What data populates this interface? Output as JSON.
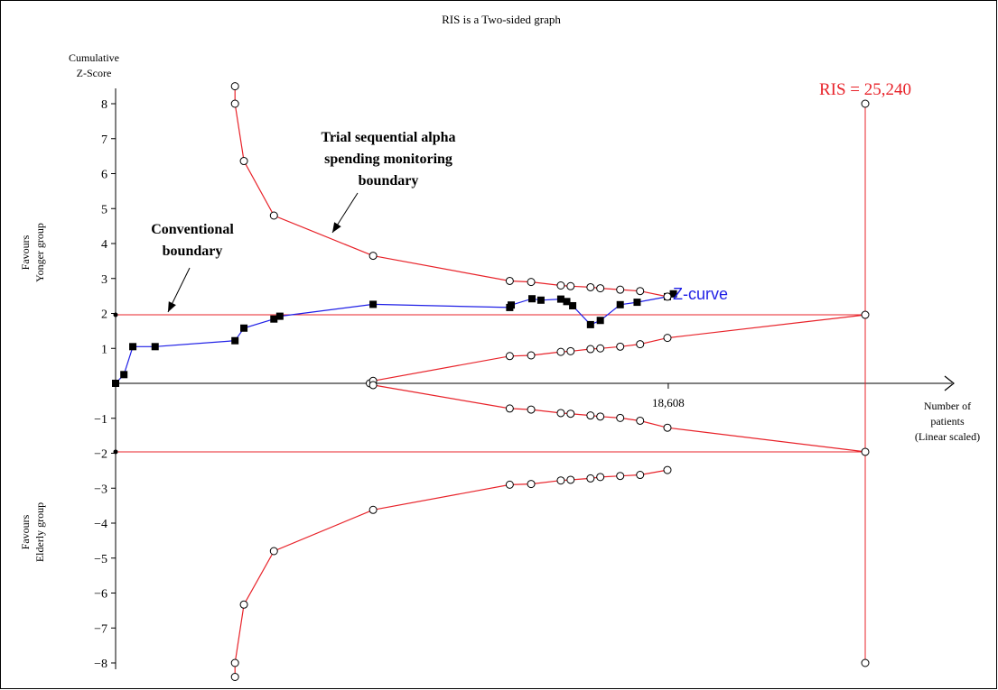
{
  "title": "RIS is a Two-sided graph",
  "colors": {
    "z_curve": "#1f1fe6",
    "boundary": "#e8232a",
    "ris_text": "#e8232a",
    "axis": "#000000",
    "frame_border": "#000000"
  },
  "chart_data": {
    "type": "line",
    "title": "RIS is a Two-sided graph",
    "ylabel_lines": [
      "Cumulative",
      "Z-Score"
    ],
    "xlabel_lines": [
      "Number of",
      "patients",
      "(Linear scaled)"
    ],
    "y_side_labels": {
      "upper": [
        "Favours",
        "Yonger group"
      ],
      "lower": [
        "Favours",
        "Elderly group"
      ]
    },
    "ylim": [
      -8.5,
      8.6
    ],
    "yticks": [
      8,
      7,
      6,
      5,
      4,
      3,
      2,
      1,
      -1,
      -2,
      -3,
      -4,
      -5,
      -6,
      -7,
      -8
    ],
    "x_tick_labels": [
      {
        "x": 18608,
        "label": "18,608"
      }
    ],
    "ris": {
      "x": 25240,
      "label": "RIS = 25,240",
      "y_top": 8,
      "y_bottom": -8
    },
    "conventional_boundary": 1.96,
    "series": [
      {
        "name": "Z-curve",
        "points": [
          [
            0,
            0
          ],
          [
            280,
            0.25
          ],
          [
            580,
            1.05
          ],
          [
            1330,
            1.05
          ],
          [
            4020,
            1.22
          ],
          [
            4320,
            1.58
          ],
          [
            5330,
            1.84
          ],
          [
            5530,
            1.92
          ],
          [
            8670,
            2.26
          ],
          [
            13270,
            2.17
          ],
          [
            13320,
            2.24
          ],
          [
            14020,
            2.42
          ],
          [
            14320,
            2.38
          ],
          [
            14990,
            2.41
          ],
          [
            15190,
            2.34
          ],
          [
            15390,
            2.22
          ],
          [
            15990,
            1.68
          ],
          [
            16320,
            1.8
          ],
          [
            16990,
            2.25
          ],
          [
            17560,
            2.32
          ],
          [
            18580,
            2.48
          ],
          [
            18780,
            2.56
          ]
        ]
      },
      {
        "name": "upper_alpha_spending",
        "points": [
          [
            4020,
            8.5
          ],
          [
            4020,
            8.0
          ],
          [
            4320,
            6.36
          ],
          [
            5330,
            4.8
          ],
          [
            8670,
            3.65
          ],
          [
            13270,
            2.93
          ],
          [
            13990,
            2.9
          ],
          [
            14990,
            2.8
          ],
          [
            15320,
            2.78
          ],
          [
            15990,
            2.75
          ],
          [
            16320,
            2.72
          ],
          [
            16990,
            2.68
          ],
          [
            17660,
            2.64
          ],
          [
            18580,
            2.48
          ]
        ]
      },
      {
        "name": "lower_alpha_spending",
        "points": [
          [
            4020,
            -8.4
          ],
          [
            4020,
            -8.0
          ],
          [
            4320,
            -6.33
          ],
          [
            5330,
            -4.8
          ],
          [
            8670,
            -3.62
          ],
          [
            13270,
            -2.9
          ],
          [
            13990,
            -2.88
          ],
          [
            14990,
            -2.78
          ],
          [
            15320,
            -2.76
          ],
          [
            15990,
            -2.72
          ],
          [
            16320,
            -2.68
          ],
          [
            16990,
            -2.65
          ],
          [
            17660,
            -2.62
          ],
          [
            18580,
            -2.48
          ]
        ]
      },
      {
        "name": "upper_futility",
        "points": [
          [
            8560,
            0.0
          ],
          [
            8670,
            0.07
          ],
          [
            13270,
            0.78
          ],
          [
            13990,
            0.8
          ],
          [
            14990,
            0.9
          ],
          [
            15320,
            0.92
          ],
          [
            15990,
            0.98
          ],
          [
            16320,
            1.0
          ],
          [
            16990,
            1.05
          ],
          [
            17660,
            1.12
          ],
          [
            18580,
            1.3
          ],
          [
            25240,
            1.96
          ]
        ]
      },
      {
        "name": "lower_futility",
        "points": [
          [
            8670,
            -0.05
          ],
          [
            13270,
            -0.72
          ],
          [
            13990,
            -0.75
          ],
          [
            14990,
            -0.85
          ],
          [
            15320,
            -0.87
          ],
          [
            15990,
            -0.92
          ],
          [
            16320,
            -0.95
          ],
          [
            16990,
            -0.99
          ],
          [
            17660,
            -1.07
          ],
          [
            18580,
            -1.27
          ],
          [
            25240,
            -1.96
          ]
        ]
      }
    ],
    "annotations": {
      "alpha_lines": [
        "Trial sequential alpha",
        "spending monitoring",
        "boundary"
      ],
      "conventional_lines": [
        "Conventional",
        "boundary"
      ],
      "zcurve_label": "Z-curve"
    },
    "grid": false
  }
}
